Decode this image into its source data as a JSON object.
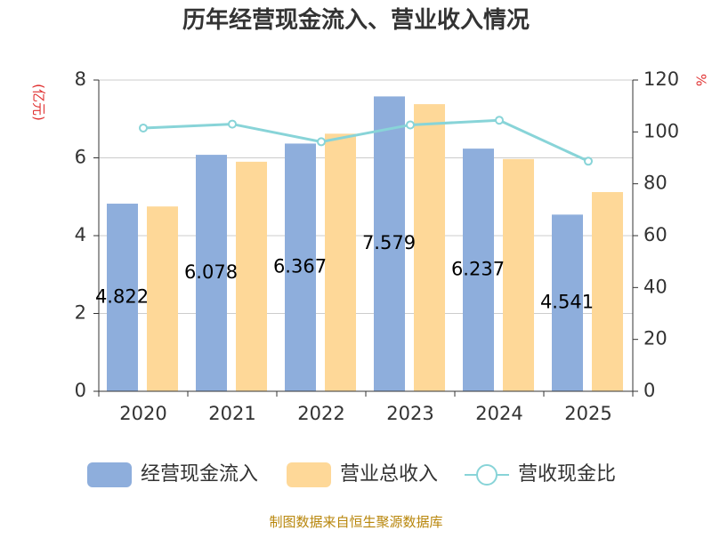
{
  "chart_data": {
    "type": "bar",
    "title": "历年经营现金流入、营业收入情况",
    "left_unit": "(亿元)",
    "right_unit": "%",
    "categories": [
      "2020",
      "2021",
      "2022",
      "2023",
      "2024",
      "2025"
    ],
    "series": [
      {
        "name": "经营现金流入",
        "type": "bar",
        "axis": "left",
        "color": "#8eaedc",
        "values": [
          4.822,
          6.078,
          6.367,
          7.579,
          6.237,
          4.541
        ],
        "labels": [
          "4.822",
          "6.078",
          "6.367",
          "7.579",
          "6.237",
          "4.541"
        ]
      },
      {
        "name": "营业总收入",
        "type": "bar",
        "axis": "left",
        "color": "#fed898",
        "values": [
          4.75,
          5.9,
          6.62,
          7.38,
          5.97,
          5.12
        ]
      },
      {
        "name": "营收现金比",
        "type": "line",
        "axis": "right",
        "color": "#88d4d8",
        "values": [
          101.5,
          103.0,
          96.2,
          102.7,
          104.5,
          88.7
        ]
      }
    ],
    "y_left": {
      "min": 0,
      "max": 8,
      "ticks": [
        0,
        2,
        4,
        6,
        8
      ]
    },
    "y_right": {
      "min": 0,
      "max": 120,
      "ticks": [
        0,
        20,
        40,
        60,
        80,
        100,
        120
      ]
    },
    "grid": true,
    "legend_position": "bottom"
  },
  "source": "制图数据来自恒生聚源数据库"
}
